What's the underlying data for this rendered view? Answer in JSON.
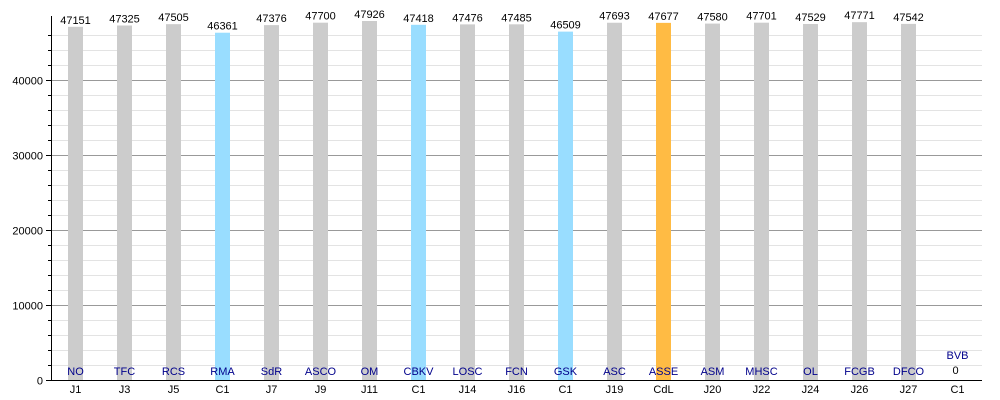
{
  "chart_data": {
    "type": "bar",
    "categories": [
      "J1",
      "J3",
      "J5",
      "C1",
      "J7",
      "J9",
      "J11",
      "C1",
      "J14",
      "J16",
      "C1",
      "J19",
      "CdL",
      "J20",
      "J22",
      "J24",
      "J26",
      "J27",
      "C1"
    ],
    "opponents": [
      "NO",
      "TFC",
      "RCS",
      "RMA",
      "SdR",
      "ASCO",
      "OM",
      "CBKV",
      "LOSC",
      "FCN",
      "GSK",
      "ASC",
      "ASSE",
      "ASM",
      "MHSC",
      "OL",
      "FCGB",
      "DFCO",
      "BVB"
    ],
    "values": [
      47151,
      47325,
      47505,
      46361,
      47376,
      47700,
      47926,
      47418,
      47476,
      47485,
      46509,
      47693,
      47677,
      47580,
      47701,
      47529,
      47771,
      47542,
      0
    ],
    "value_labels": [
      "47151",
      "47325",
      "47505",
      "46361",
      "47376",
      "47700",
      "47926",
      "47418",
      "47476",
      "47485",
      "46509",
      "47693",
      "47677",
      "47580",
      "47701",
      "47529",
      "47771",
      "47542",
      "0"
    ],
    "bar_colors": [
      "#cccccc",
      "#cccccc",
      "#cccccc",
      "#99ddff",
      "#cccccc",
      "#cccccc",
      "#cccccc",
      "#99ddff",
      "#cccccc",
      "#cccccc",
      "#99ddff",
      "#cccccc",
      "#ffbb44",
      "#cccccc",
      "#cccccc",
      "#cccccc",
      "#cccccc",
      "#cccccc",
      "#cccccc"
    ],
    "y_ticks": [
      "0",
      "10000",
      "20000",
      "30000",
      "40000"
    ],
    "ylim": [
      0,
      47926
    ],
    "grid": true,
    "title": "",
    "xlabel": "",
    "ylabel": ""
  }
}
